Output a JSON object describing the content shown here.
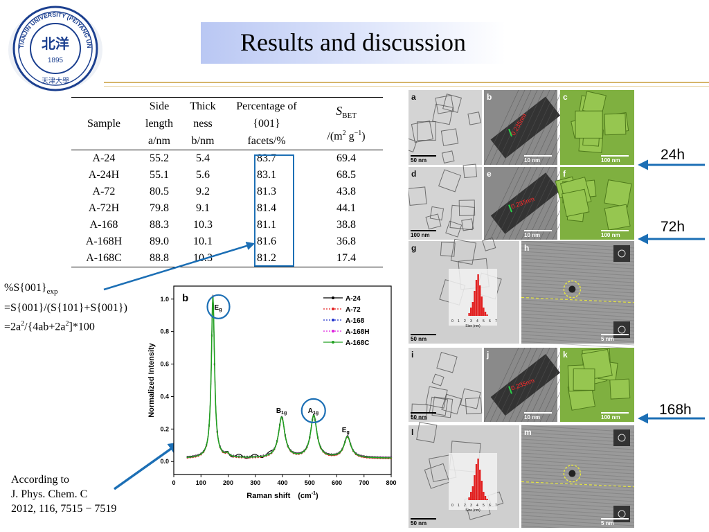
{
  "header": {
    "title": "Results and discussion",
    "logo": {
      "ring_text": "TIANJIN UNIVERSITY (PEIYANG UNIVERSITY)",
      "center_text": "北洋",
      "year": "1895",
      "chinese_name": "天津大學"
    }
  },
  "table": {
    "headers": [
      {
        "lines": [
          "Sample"
        ]
      },
      {
        "lines": [
          "Side",
          "length",
          "a/nm"
        ]
      },
      {
        "lines": [
          "Thick",
          "ness",
          "b/nm"
        ]
      },
      {
        "lines": [
          "Percentage of",
          "{001}",
          "facets/%"
        ]
      },
      {
        "lines": [
          "S",
          "BET",
          "/(m",
          "2",
          " g",
          "−1",
          ")"
        ]
      }
    ],
    "rows": [
      [
        "A-24",
        "55.2",
        "5.4",
        "83.7",
        "69.4"
      ],
      [
        "A-24H",
        "55.1",
        "5.6",
        "83.1",
        "68.5"
      ],
      [
        "A-72",
        "80.5",
        "9.2",
        "81.3",
        "43.8"
      ],
      [
        "A-72H",
        "79.8",
        "9.1",
        "81.4",
        "44.1"
      ],
      [
        "A-168",
        "88.3",
        "10.3",
        "81.1",
        "38.8"
      ],
      [
        "A-168H",
        "89.0",
        "10.1",
        "81.6",
        "36.8"
      ],
      [
        "A-168C",
        "88.8",
        "10.3",
        "81.2",
        "17.4"
      ]
    ]
  },
  "formula": {
    "l1_a": "%S{001}",
    "l1_sub": "exp",
    "l2": "=S{001}/(S{101}+S{001})",
    "l3_a": "=2a",
    "l3_b": "2",
    "l3_c": "/{4ab+2a",
    "l3_d": "2",
    "l3_e": "]*100"
  },
  "citation": {
    "lines": [
      "According to",
      "J. Phys. Chem. C",
      "2012, 116, 7515 − 7519"
    ]
  },
  "chart_data": {
    "type": "line",
    "panel_label": "b",
    "xlabel_main": "Raman shift　(cm",
    "xlabel_sup": "-1",
    "xlabel_end": ")",
    "ylabel": "Normalized Intensity",
    "xlim": [
      0,
      800
    ],
    "ylim": [
      -0.08,
      1.08
    ],
    "xticks": [
      0,
      100,
      200,
      300,
      400,
      500,
      600,
      700,
      800
    ],
    "yticks": [
      0.0,
      0.2,
      0.4,
      0.6,
      0.8,
      1.0
    ],
    "peak_labels": [
      {
        "main": "E",
        "sub": "g",
        "x": 144,
        "y": 0.97
      },
      {
        "main": "B",
        "sub": "1g",
        "x": 397,
        "y": 0.3
      },
      {
        "main": "A",
        "sub": "1g",
        "x": 514,
        "y": 0.3
      },
      {
        "main": "E",
        "sub": "g",
        "x": 639,
        "y": 0.18
      }
    ],
    "peaks": [
      {
        "x": 144,
        "h": 1.0,
        "w": 7
      },
      {
        "x": 197,
        "h": 0.02,
        "w": 8
      },
      {
        "x": 397,
        "h": 0.25,
        "w": 14
      },
      {
        "x": 515,
        "h": 0.26,
        "w": 14
      },
      {
        "x": 639,
        "h": 0.13,
        "w": 15
      }
    ],
    "baseline": 0.02,
    "series": [
      {
        "name": "A-24",
        "color": "#000000",
        "offset": 0.004,
        "dash": ""
      },
      {
        "name": "A-72",
        "color": "#e32222",
        "offset": -0.004,
        "dash": "2,2"
      },
      {
        "name": "A-168",
        "color": "#2233cc",
        "offset": 0.0,
        "dash": "2,2"
      },
      {
        "name": "A-168H",
        "color": "#dd22dd",
        "offset": 0.002,
        "dash": "2,2"
      },
      {
        "name": "A-168C",
        "color": "#20a020",
        "offset": 0.0,
        "dash": ""
      }
    ]
  },
  "micrographs": {
    "panels": [
      {
        "label": "a",
        "scale": "50 nm"
      },
      {
        "label": "b",
        "scale": "10 nm",
        "annotation": "0.235nm"
      },
      {
        "label": "c",
        "scale": "100 nm"
      },
      {
        "label": "d",
        "scale": "100 nm"
      },
      {
        "label": "e",
        "scale": "10 nm",
        "annotation": "0.235nm"
      },
      {
        "label": "f",
        "scale": "100 nm"
      },
      {
        "label": "g",
        "scale": "50 nm"
      },
      {
        "label": "h",
        "scale": "5 nm"
      },
      {
        "label": "i",
        "scale": "50 nm"
      },
      {
        "label": "j",
        "scale": "10 nm",
        "annotation": "0.235nm"
      },
      {
        "label": "k",
        "scale": "100 nm"
      },
      {
        "label": "l",
        "scale": "50 nm"
      },
      {
        "label": "m",
        "scale": "5 nm"
      }
    ],
    "hist_axis_label": "Size (nm)",
    "hist_ticks": [
      "0",
      "1",
      "2",
      "3",
      "4",
      "5",
      "6",
      "7"
    ],
    "time_labels": [
      "24h",
      "72h",
      "168h"
    ]
  },
  "colors": {
    "accent_blue": "#1c6fb5",
    "title_bg": "#b9c7f3",
    "sem_green": "#7fb040",
    "rule": "#d6b56a"
  }
}
